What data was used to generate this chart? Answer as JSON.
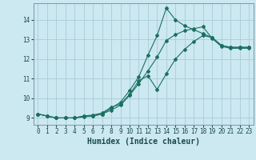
{
  "xlabel": "Humidex (Indice chaleur)",
  "background_color": "#cce8f0",
  "line_color": "#1a7060",
  "grid_color": "#aaccd8",
  "xlim": [
    -0.5,
    23.5
  ],
  "ylim": [
    8.65,
    14.85
  ],
  "xticks": [
    0,
    1,
    2,
    3,
    4,
    5,
    6,
    7,
    8,
    9,
    10,
    11,
    12,
    13,
    14,
    15,
    16,
    17,
    18,
    19,
    20,
    21,
    22,
    23
  ],
  "yticks": [
    9,
    10,
    11,
    12,
    13,
    14
  ],
  "line1_y": [
    9.2,
    9.1,
    9.0,
    9.0,
    9.0,
    9.1,
    9.1,
    9.2,
    9.5,
    9.8,
    10.4,
    11.1,
    12.2,
    13.2,
    14.6,
    14.0,
    13.7,
    13.5,
    13.3,
    13.1,
    12.7,
    12.6,
    12.6,
    12.6
  ],
  "line2_y": [
    9.2,
    9.1,
    9.0,
    9.0,
    9.0,
    9.1,
    9.15,
    9.25,
    9.55,
    9.7,
    10.2,
    10.9,
    11.15,
    10.45,
    11.25,
    12.0,
    12.5,
    12.9,
    13.2,
    13.1,
    12.7,
    12.6,
    12.6,
    12.6
  ],
  "line3_y": [
    9.2,
    9.1,
    9.0,
    9.0,
    9.0,
    9.05,
    9.1,
    9.2,
    9.4,
    9.65,
    10.15,
    10.75,
    11.4,
    12.1,
    12.95,
    13.25,
    13.45,
    13.55,
    13.65,
    13.05,
    12.65,
    12.55,
    12.55,
    12.55
  ],
  "tick_fontsize": 5.5,
  "xlabel_fontsize": 7
}
